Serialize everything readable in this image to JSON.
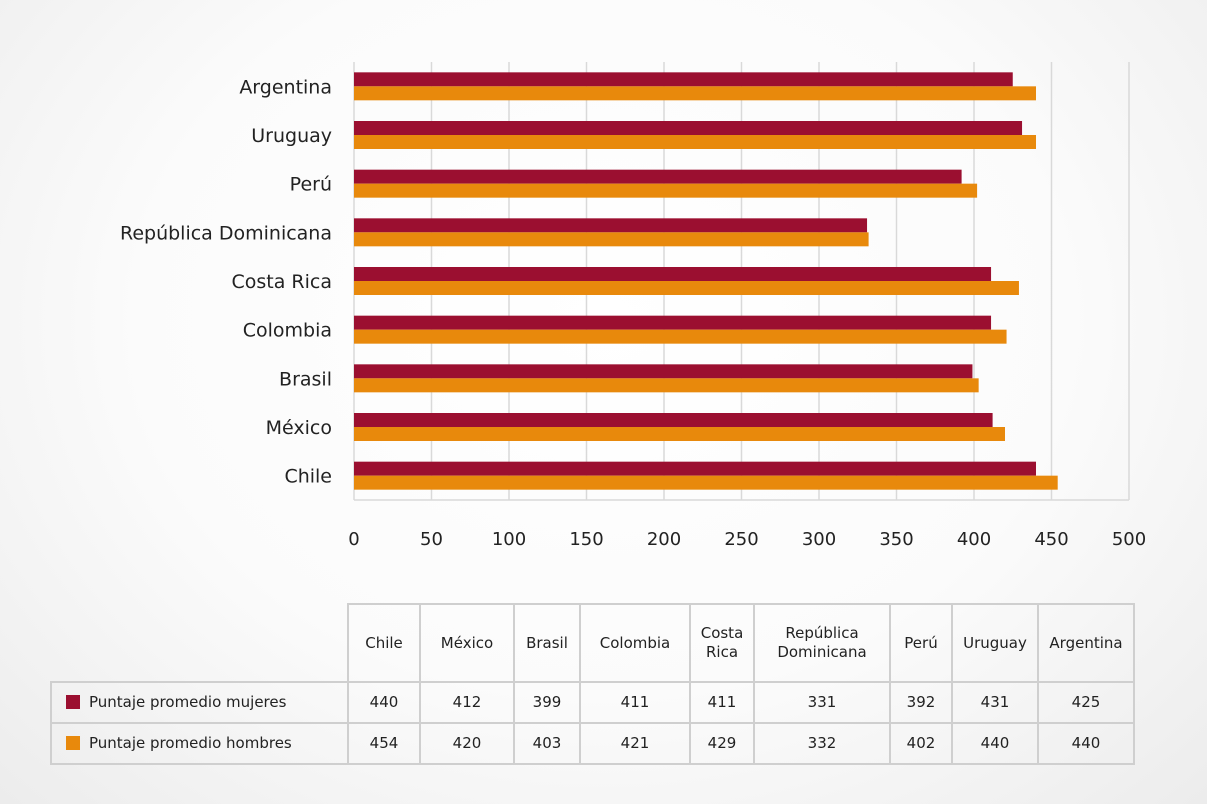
{
  "colors": {
    "mujeres": "#9b0f30",
    "hombres": "#e8890c",
    "grid": "#d9d9d9"
  },
  "chart_data": {
    "type": "bar",
    "orientation": "horizontal",
    "categories": [
      "Chile",
      "México",
      "Brasil",
      "Colombia",
      "Costa Rica",
      "República Dominicana",
      "Perú",
      "Uruguay",
      "Argentina"
    ],
    "series": [
      {
        "name": "Puntaje promedio mujeres",
        "values": [
          440,
          412,
          399,
          411,
          411,
          331,
          392,
          431,
          425
        ]
      },
      {
        "name": "Puntaje promedio hombres",
        "values": [
          454,
          420,
          403,
          421,
          429,
          332,
          402,
          440,
          440
        ]
      }
    ],
    "xlim": [
      0,
      500
    ],
    "xticks": [
      "0",
      "50",
      "100",
      "150",
      "200",
      "250",
      "300",
      "350",
      "400",
      "450",
      "500"
    ],
    "grid": true,
    "legend": "data table below chart"
  },
  "table": {
    "headers": [
      "Chile",
      "México",
      "Brasil",
      "Colombia",
      "Costa Rica",
      "República Dominicana",
      "Perú",
      "Uruguay",
      "Argentina"
    ],
    "rows": [
      {
        "label": "Puntaje promedio mujeres",
        "values": [
          "440",
          "412",
          "399",
          "411",
          "411",
          "331",
          "392",
          "431",
          "425"
        ]
      },
      {
        "label": "Puntaje promedio hombres",
        "values": [
          "454",
          "420",
          "403",
          "421",
          "429",
          "332",
          "402",
          "440",
          "440"
        ]
      }
    ]
  }
}
